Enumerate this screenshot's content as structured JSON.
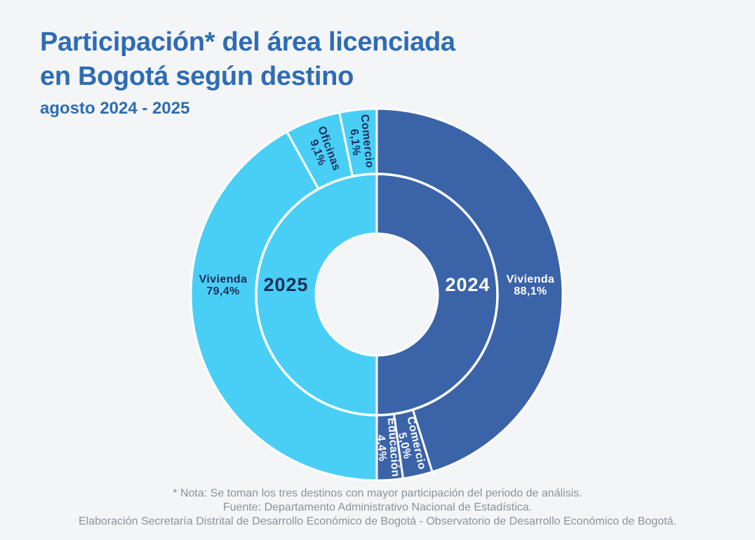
{
  "header": {
    "title_line1": "Participación* del área licenciada",
    "title_line2": "en Bogotá según destino",
    "subtitle": "agosto 2024 - 2025"
  },
  "colors": {
    "title_blue": "#2E6CB4",
    "ring_2024": "#3B63A8",
    "ring_2025": "#49CFF6",
    "navy_text": "#1F2C58",
    "white_text": "#FFFFFF",
    "footer_gray": "#8A929B",
    "background": "#F4F5F6"
  },
  "chart_data": {
    "type": "pie",
    "subtype": "double-half-donut-by-year",
    "title": "Participación* del área licenciada en Bogotá según destino",
    "subtitle": "agosto 2024 - 2025",
    "units": "%",
    "value_format": "comma-decimal-percent",
    "legend_position": "inside-rings",
    "series": [
      {
        "name": "2024",
        "side": "right",
        "direction": "clockwise",
        "color": "#3B63A8",
        "text_color": "#FFFFFF",
        "data": [
          {
            "category": "Vivienda",
            "value": 88.1,
            "label": "88,1%"
          },
          {
            "category": "Comercio",
            "value": 5.0,
            "label": "5,0%"
          },
          {
            "category": "Educación",
            "value": 4.4,
            "label": "4,4%"
          }
        ]
      },
      {
        "name": "2025",
        "side": "left",
        "direction": "counterclockwise",
        "color": "#49CFF6",
        "text_color": "#1F2C58",
        "data": [
          {
            "category": "Comercio",
            "value": 6.1,
            "label": "6,1%"
          },
          {
            "category": "Oficinas",
            "value": 9.1,
            "label": "9,1%"
          },
          {
            "category": "Vivienda",
            "value": 79.4,
            "label": "79,4%"
          }
        ]
      }
    ]
  },
  "footer": {
    "note": "* Nota: Se toman los tres destinos con mayor participación del periodo de análisis.",
    "source": "Fuente: Departamento Administrativo Nacional de Estadística.",
    "elaboration": "Elaboración Secretaría Distrital de Desarrollo Económico de Bogotá - Observatorio de Desarrollo Económico de Bogotá."
  }
}
